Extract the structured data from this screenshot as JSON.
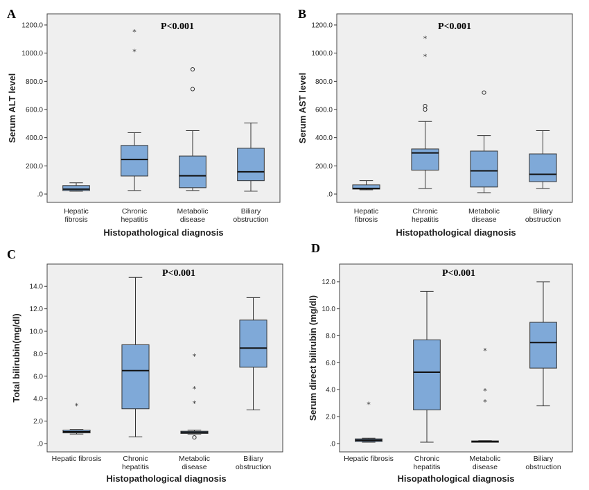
{
  "chart_data": [
    {
      "panel": "A",
      "type": "box",
      "p_value": "P<0.001",
      "xlabel": "Histopathological diagnosis",
      "ylabel": "Serum ALT level",
      "ylim": [
        0,
        1200
      ],
      "yticks": [
        0,
        200,
        400,
        600,
        800,
        1000,
        1200
      ],
      "ytick_labels": [
        ".0",
        "200.0",
        "400.0",
        "600.0",
        "800.0",
        "1000.0",
        "1200.0"
      ],
      "categories": [
        [
          "Hepatic",
          "fibrosis"
        ],
        [
          "Chronic",
          "hepatitis"
        ],
        [
          "Metabolic",
          "disease"
        ],
        [
          "Biliary",
          "obstruction"
        ]
      ],
      "boxes": [
        {
          "min": 20,
          "q1": 25,
          "median": 35,
          "q3": 60,
          "max": 80,
          "outliers": [],
          "extremes": []
        },
        {
          "min": 25,
          "q1": 128,
          "median": 245,
          "q3": 345,
          "max": 435,
          "outliers": [],
          "extremes": [
            1020,
            1160
          ]
        },
        {
          "min": 25,
          "q1": 45,
          "median": 130,
          "q3": 270,
          "max": 450,
          "outliers": [
            745,
            885
          ],
          "extremes": []
        },
        {
          "min": 20,
          "q1": 95,
          "median": 158,
          "q3": 325,
          "max": 505,
          "outliers": [],
          "extremes": []
        }
      ]
    },
    {
      "panel": "B",
      "type": "box",
      "p_value": "P<0.001",
      "xlabel": "Histopathological diagnosis",
      "ylabel": "Serum AST level",
      "ylim": [
        0,
        1200
      ],
      "yticks": [
        0,
        200,
        400,
        600,
        800,
        1000,
        1200
      ],
      "ytick_labels": [
        ".0",
        "200.0",
        "400.0",
        "600.0",
        "800.0",
        "1000.0",
        "1200.0"
      ],
      "categories": [
        [
          "Hepatic",
          "fibrosis"
        ],
        [
          "Chronic",
          "hepatitis"
        ],
        [
          "Metabolic",
          "disease"
        ],
        [
          "Biliary",
          "obstruction"
        ]
      ],
      "boxes": [
        {
          "min": 30,
          "q1": 35,
          "median": 40,
          "q3": 65,
          "max": 95,
          "outliers": [],
          "extremes": []
        },
        {
          "min": 40,
          "q1": 170,
          "median": 292,
          "q3": 320,
          "max": 515,
          "outliers": [
            600,
            625
          ],
          "extremes": [
            985,
            1115
          ]
        },
        {
          "min": 10,
          "q1": 50,
          "median": 165,
          "q3": 305,
          "max": 415,
          "outliers": [
            720
          ],
          "extremes": []
        },
        {
          "min": 40,
          "q1": 88,
          "median": 140,
          "q3": 285,
          "max": 450,
          "outliers": [],
          "extremes": []
        }
      ]
    },
    {
      "panel": "C",
      "type": "box",
      "p_value": "P<0.001",
      "xlabel": "Histopathological diagnosis",
      "ylabel": "Total bilirubin(mg/dl)",
      "ylim": [
        0,
        15
      ],
      "yticks": [
        0,
        2,
        4,
        6,
        8,
        10,
        12,
        14
      ],
      "ytick_labels": [
        ".0",
        "2.0",
        "4.0",
        "6.0",
        "8.0",
        "10.0",
        "12.0",
        "14.0"
      ],
      "categories": [
        [
          "Hepatic fibrosis"
        ],
        [
          "Chronic",
          "hepatitis"
        ],
        [
          "Metabolic",
          "disease"
        ],
        [
          "Biliary",
          "obstruction"
        ]
      ],
      "boxes": [
        {
          "min": 0.85,
          "q1": 0.95,
          "median": 1.05,
          "q3": 1.2,
          "max": 1.25,
          "outliers": [],
          "extremes": [
            3.5
          ]
        },
        {
          "min": 0.6,
          "q1": 3.1,
          "median": 6.5,
          "q3": 8.8,
          "max": 14.8,
          "outliers": [],
          "extremes": []
        },
        {
          "min": 0.85,
          "q1": 0.9,
          "median": 1.0,
          "q3": 1.1,
          "max": 1.2,
          "outliers": [
            0.55
          ],
          "extremes": [
            3.7,
            5.0,
            7.9
          ]
        },
        {
          "min": 3.0,
          "q1": 6.8,
          "median": 8.5,
          "q3": 11.0,
          "max": 13.0,
          "outliers": [],
          "extremes": []
        }
      ]
    },
    {
      "panel": "D",
      "type": "box",
      "p_value": "P<0.001",
      "xlabel": "Hisopathological diagnosis",
      "ylabel": "Serum direct bilirubin (mg/dl)",
      "ylim": [
        0,
        12.5
      ],
      "yticks": [
        0,
        2,
        4,
        6,
        8,
        10,
        12
      ],
      "ytick_labels": [
        ".0",
        "2.0",
        "4.0",
        "6.0",
        "8.0",
        "10.0",
        "12.0"
      ],
      "categories": [
        [
          "Hepatic fibrosis"
        ],
        [
          "Chronic",
          "hepatitis"
        ],
        [
          "Metabolic",
          "disease"
        ],
        [
          "Biliary",
          "obstruction"
        ]
      ],
      "boxes": [
        {
          "min": 0.1,
          "q1": 0.15,
          "median": 0.25,
          "q3": 0.35,
          "max": 0.4,
          "outliers": [],
          "extremes": [
            3.0
          ]
        },
        {
          "min": 0.1,
          "q1": 2.5,
          "median": 5.3,
          "q3": 7.7,
          "max": 11.3,
          "outliers": [],
          "extremes": []
        },
        {
          "min": 0.1,
          "q1": 0.12,
          "median": 0.15,
          "q3": 0.2,
          "max": 0.22,
          "outliers": [],
          "extremes": [
            3.2,
            4.0,
            7.0
          ]
        },
        {
          "min": 2.8,
          "q1": 5.6,
          "median": 7.5,
          "q3": 9.0,
          "max": 12.0,
          "outliers": [],
          "extremes": []
        }
      ]
    }
  ]
}
